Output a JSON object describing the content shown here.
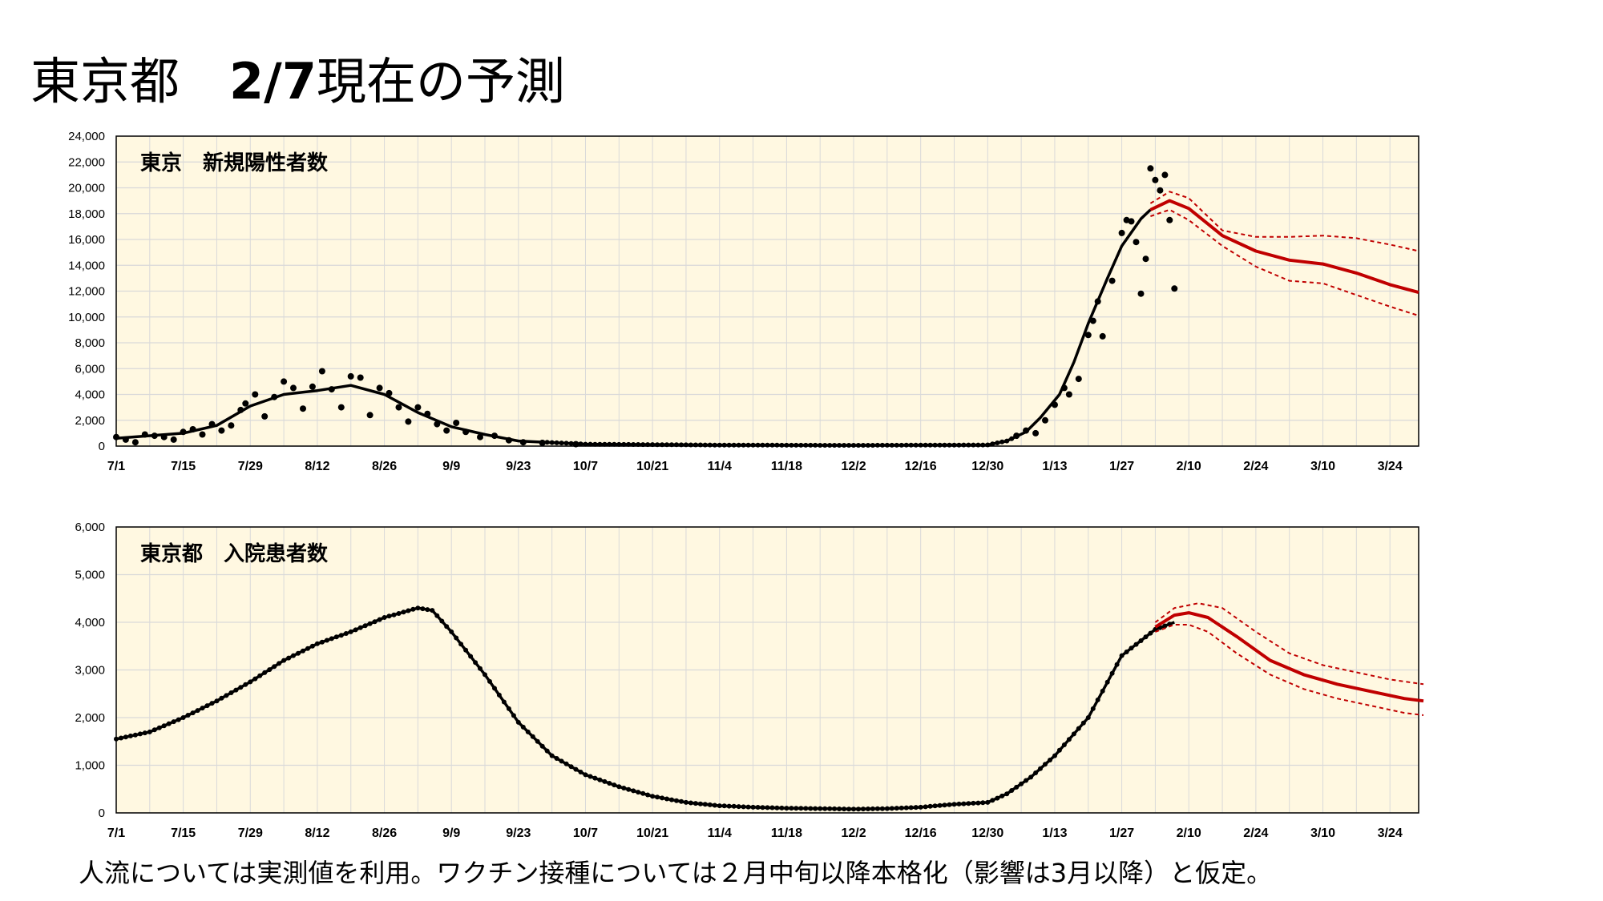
{
  "title": {
    "region": "東京都",
    "spacer": "　",
    "date_main": "2/7",
    "date_rest": "現在の予測"
  },
  "footnote": "人流については実測値を利用。ワクチン接種については２月中旬以降本格化（影響は3月以降）と仮定。",
  "colors": {
    "plot_background": "#fff8e1",
    "grid": "#d9d9d9",
    "observed": "#000000",
    "forecast": "#c00000"
  },
  "chart_data": [
    {
      "type": "line",
      "title": "東京　新規陽性者数",
      "x_range": [
        "7/1",
        "3/30"
      ],
      "x_ticks": [
        "7/1",
        "7/15",
        "7/29",
        "8/12",
        "8/26",
        "9/9",
        "9/23",
        "10/7",
        "10/21",
        "11/4",
        "11/18",
        "12/2",
        "12/16",
        "12/30",
        "1/13",
        "1/27",
        "2/10",
        "2/24",
        "3/10",
        "3/24"
      ],
      "y_ticks": [
        "0",
        "2,000",
        "4,000",
        "6,000",
        "8,000",
        "10,000",
        "12,000",
        "14,000",
        "16,000",
        "18,000",
        "20,000",
        "22,000",
        "24,000"
      ],
      "ylim": [
        0,
        24000
      ],
      "grid": true,
      "series": [
        {
          "kind": "observed_trend",
          "points": [
            [
              "7/1",
              600
            ],
            [
              "7/15",
              1000
            ],
            [
              "7/22",
              1600
            ],
            [
              "7/29",
              3100
            ],
            [
              "8/5",
              4000
            ],
            [
              "8/12",
              4300
            ],
            [
              "8/19",
              4700
            ],
            [
              "8/26",
              4000
            ],
            [
              "9/2",
              2600
            ],
            [
              "9/9",
              1500
            ],
            [
              "9/16",
              900
            ],
            [
              "9/23",
              400
            ],
            [
              "10/7",
              150
            ],
            [
              "11/4",
              80
            ],
            [
              "12/2",
              60
            ],
            [
              "12/30",
              90
            ],
            [
              "1/3",
              400
            ],
            [
              "1/7",
              1100
            ],
            [
              "1/10",
              2200
            ],
            [
              "1/14",
              4000
            ],
            [
              "1/17",
              6500
            ],
            [
              "1/20",
              9500
            ],
            [
              "1/24",
              13000
            ],
            [
              "1/27",
              15500
            ],
            [
              "1/31",
              17600
            ],
            [
              "2/2",
              18300
            ]
          ]
        },
        {
          "kind": "observed_daily",
          "points": [
            [
              "7/1",
              700
            ],
            [
              "7/3",
              500
            ],
            [
              "7/5",
              300
            ],
            [
              "7/7",
              900
            ],
            [
              "7/9",
              800
            ],
            [
              "7/11",
              700
            ],
            [
              "7/13",
              500
            ],
            [
              "7/15",
              1100
            ],
            [
              "7/17",
              1300
            ],
            [
              "7/19",
              900
            ],
            [
              "7/21",
              1700
            ],
            [
              "7/23",
              1200
            ],
            [
              "7/25",
              1600
            ],
            [
              "7/27",
              2800
            ],
            [
              "7/28",
              3300
            ],
            [
              "7/30",
              4000
            ],
            [
              "8/1",
              2300
            ],
            [
              "8/3",
              3800
            ],
            [
              "8/5",
              5000
            ],
            [
              "8/7",
              4500
            ],
            [
              "8/9",
              2900
            ],
            [
              "8/11",
              4600
            ],
            [
              "8/13",
              5800
            ],
            [
              "8/15",
              4400
            ],
            [
              "8/17",
              3000
            ],
            [
              "8/19",
              5400
            ],
            [
              "8/21",
              5300
            ],
            [
              "8/23",
              2400
            ],
            [
              "8/25",
              4500
            ],
            [
              "8/27",
              4100
            ],
            [
              "8/29",
              3000
            ],
            [
              "8/31",
              1900
            ],
            [
              "9/2",
              3000
            ],
            [
              "9/4",
              2500
            ],
            [
              "9/6",
              1700
            ],
            [
              "9/8",
              1200
            ],
            [
              "9/10",
              1800
            ],
            [
              "9/12",
              1100
            ],
            [
              "9/15",
              700
            ],
            [
              "9/18",
              800
            ],
            [
              "9/21",
              450
            ],
            [
              "9/24",
              300
            ],
            [
              "9/28",
              250
            ],
            [
              "10/5",
              150
            ],
            [
              "1/5",
              800
            ],
            [
              "1/7",
              1200
            ],
            [
              "1/9",
              1000
            ],
            [
              "1/11",
              2000
            ],
            [
              "1/13",
              3200
            ],
            [
              "1/15",
              4500
            ],
            [
              "1/16",
              4000
            ],
            [
              "1/18",
              5200
            ],
            [
              "1/20",
              8600
            ],
            [
              "1/21",
              9700
            ],
            [
              "1/22",
              11200
            ],
            [
              "1/23",
              8500
            ],
            [
              "1/25",
              12800
            ],
            [
              "1/27",
              16500
            ],
            [
              "1/28",
              17500
            ],
            [
              "1/29",
              17400
            ],
            [
              "1/30",
              15800
            ],
            [
              "1/31",
              11800
            ],
            [
              "2/1",
              14500
            ],
            [
              "2/2",
              21500
            ],
            [
              "2/3",
              20600
            ],
            [
              "2/4",
              19800
            ],
            [
              "2/5",
              21000
            ],
            [
              "2/6",
              17500
            ],
            [
              "2/7",
              12200
            ]
          ]
        },
        {
          "kind": "forecast_median",
          "points": [
            [
              "2/2",
              18300
            ],
            [
              "2/6",
              19000
            ],
            [
              "2/10",
              18400
            ],
            [
              "2/17",
              16300
            ],
            [
              "2/24",
              15100
            ],
            [
              "3/3",
              14400
            ],
            [
              "3/10",
              14100
            ],
            [
              "3/17",
              13400
            ],
            [
              "3/24",
              12500
            ],
            [
              "3/30",
              11900
            ]
          ]
        },
        {
          "kind": "forecast_upper",
          "points": [
            [
              "2/2",
              18800
            ],
            [
              "2/6",
              19700
            ],
            [
              "2/10",
              19200
            ],
            [
              "2/17",
              16700
            ],
            [
              "2/24",
              16200
            ],
            [
              "3/3",
              16200
            ],
            [
              "3/10",
              16300
            ],
            [
              "3/17",
              16100
            ],
            [
              "3/24",
              15600
            ],
            [
              "3/30",
              15100
            ]
          ]
        },
        {
          "kind": "forecast_lower",
          "points": [
            [
              "2/2",
              17800
            ],
            [
              "2/6",
              18300
            ],
            [
              "2/10",
              17500
            ],
            [
              "2/17",
              15500
            ],
            [
              "2/24",
              13900
            ],
            [
              "3/3",
              12800
            ],
            [
              "3/10",
              12600
            ],
            [
              "3/17",
              11700
            ],
            [
              "3/24",
              10800
            ],
            [
              "3/30",
              10100
            ]
          ]
        }
      ]
    },
    {
      "type": "line",
      "title": "東京都　入院患者数",
      "x_range": [
        "7/1",
        "3/30"
      ],
      "x_ticks": [
        "7/1",
        "7/15",
        "7/29",
        "8/12",
        "8/26",
        "9/9",
        "9/23",
        "10/7",
        "10/21",
        "11/4",
        "11/18",
        "12/2",
        "12/16",
        "12/30",
        "1/13",
        "1/27",
        "2/10",
        "2/24",
        "3/10",
        "3/24"
      ],
      "y_ticks": [
        "0",
        "1,000",
        "2,000",
        "3,000",
        "4,000",
        "5,000",
        "6,000"
      ],
      "ylim": [
        0,
        6000
      ],
      "grid": true,
      "series": [
        {
          "kind": "observed",
          "points": [
            [
              "7/1",
              1550
            ],
            [
              "7/8",
              1700
            ],
            [
              "7/15",
              2000
            ],
            [
              "7/22",
              2350
            ],
            [
              "7/29",
              2750
            ],
            [
              "8/5",
              3200
            ],
            [
              "8/12",
              3550
            ],
            [
              "8/19",
              3800
            ],
            [
              "8/26",
              4100
            ],
            [
              "9/2",
              4300
            ],
            [
              "9/5",
              4250
            ],
            [
              "9/9",
              3800
            ],
            [
              "9/16",
              2900
            ],
            [
              "9/23",
              1900
            ],
            [
              "9/30",
              1200
            ],
            [
              "10/7",
              800
            ],
            [
              "10/14",
              550
            ],
            [
              "10/21",
              350
            ],
            [
              "10/28",
              220
            ],
            [
              "11/4",
              150
            ],
            [
              "11/11",
              120
            ],
            [
              "11/18",
              100
            ],
            [
              "11/25",
              90
            ],
            [
              "12/2",
              80
            ],
            [
              "12/9",
              90
            ],
            [
              "12/16",
              120
            ],
            [
              "12/23",
              180
            ],
            [
              "12/30",
              220
            ],
            [
              "1/3",
              400
            ],
            [
              "1/8",
              750
            ],
            [
              "1/13",
              1200
            ],
            [
              "1/20",
              2000
            ],
            [
              "1/27",
              3300
            ],
            [
              "2/3",
              3850
            ],
            [
              "2/7",
              4000
            ]
          ]
        },
        {
          "kind": "forecast_median",
          "points": [
            [
              "2/3",
              3900
            ],
            [
              "2/7",
              4150
            ],
            [
              "2/10",
              4200
            ],
            [
              "2/14",
              4100
            ],
            [
              "2/20",
              3700
            ],
            [
              "2/27",
              3200
            ],
            [
              "3/6",
              2900
            ],
            [
              "3/13",
              2700
            ],
            [
              "3/20",
              2550
            ],
            [
              "3/27",
              2400
            ],
            [
              "3/31",
              2350
            ]
          ]
        },
        {
          "kind": "forecast_upper",
          "points": [
            [
              "2/3",
              4000
            ],
            [
              "2/7",
              4300
            ],
            [
              "2/12",
              4400
            ],
            [
              "2/17",
              4300
            ],
            [
              "2/24",
              3800
            ],
            [
              "3/3",
              3350
            ],
            [
              "3/10",
              3100
            ],
            [
              "3/17",
              2950
            ],
            [
              "3/24",
              2800
            ],
            [
              "3/31",
              2700
            ]
          ]
        },
        {
          "kind": "forecast_lower",
          "points": [
            [
              "2/3",
              3800
            ],
            [
              "2/7",
              3950
            ],
            [
              "2/10",
              3950
            ],
            [
              "2/14",
              3800
            ],
            [
              "2/20",
              3350
            ],
            [
              "2/27",
              2900
            ],
            [
              "3/6",
              2600
            ],
            [
              "3/13",
              2400
            ],
            [
              "3/20",
              2250
            ],
            [
              "3/27",
              2100
            ],
            [
              "3/31",
              2050
            ]
          ]
        }
      ]
    }
  ]
}
